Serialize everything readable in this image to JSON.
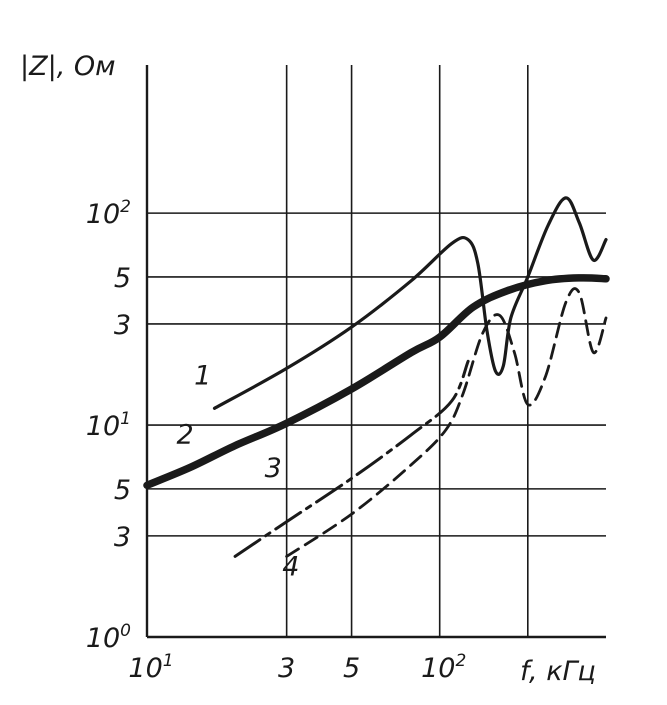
{
  "chart_data": {
    "type": "line",
    "title": "",
    "ylabel": "|Z|, Ом",
    "xlabel": "f, кГц",
    "x_scale": "log",
    "y_scale": "log",
    "xlim": [
      10,
      370
    ],
    "ylim": [
      1,
      500
    ],
    "grid": true,
    "x_ticks": [
      {
        "value": 10,
        "label": "10",
        "exp": "1"
      },
      {
        "value": 30,
        "label": "3",
        "exp": ""
      },
      {
        "value": 50,
        "label": "5",
        "exp": ""
      },
      {
        "value": 100,
        "label": "10",
        "exp": "2"
      },
      {
        "value": 200,
        "label": "",
        "exp": ""
      }
    ],
    "y_ticks": [
      {
        "value": 1,
        "label": "10",
        "exp": "0"
      },
      {
        "value": 3,
        "label": "3",
        "exp": ""
      },
      {
        "value": 5,
        "label": "5",
        "exp": ""
      },
      {
        "value": 10,
        "label": "10",
        "exp": "1"
      },
      {
        "value": 30,
        "label": "3",
        "exp": ""
      },
      {
        "value": 50,
        "label": "5",
        "exp": ""
      },
      {
        "value": 100,
        "label": "10",
        "exp": "2"
      }
    ],
    "series": [
      {
        "name": "1",
        "style": "solid-thin",
        "x": [
          17,
          30,
          50,
          80,
          110,
          125,
          135,
          145,
          155,
          165,
          175,
          200,
          235,
          270,
          300,
          335,
          370
        ],
        "y": [
          12,
          18.5,
          29,
          48,
          72,
          75,
          58,
          28,
          18,
          19,
          32,
          50,
          88,
          118,
          90,
          60,
          75
        ]
      },
      {
        "name": "2",
        "style": "solid-thick",
        "x": [
          10,
          14,
          20,
          30,
          50,
          80,
          100,
          130,
          170,
          230,
          300,
          370
        ],
        "y": [
          5.2,
          6.3,
          8.0,
          10.2,
          14.8,
          22,
          26,
          36,
          43,
          48,
          49.5,
          49
        ]
      },
      {
        "name": "3",
        "style": "dash-dot",
        "x": [
          20,
          30,
          50,
          80,
          110,
          125
        ],
        "y": [
          2.4,
          3.5,
          5.6,
          9.0,
          13,
          20
        ]
      },
      {
        "name": "4",
        "style": "dashed",
        "x": [
          30,
          50,
          80,
          105,
          120,
          140,
          160,
          180,
          200,
          230,
          270,
          300,
          335,
          370
        ],
        "y": [
          2.4,
          3.8,
          6.5,
          9.5,
          14,
          27,
          33,
          22,
          12.5,
          17,
          38,
          42,
          22,
          32
        ]
      }
    ],
    "curve_labels": [
      {
        "text": "1",
        "x": 15.5,
        "y": 15.5
      },
      {
        "text": "2",
        "x": 13.5,
        "y": 8.2
      },
      {
        "text": "3",
        "x": 27,
        "y": 5.7
      },
      {
        "text": "4",
        "x": 31,
        "y": 1.95
      }
    ]
  }
}
